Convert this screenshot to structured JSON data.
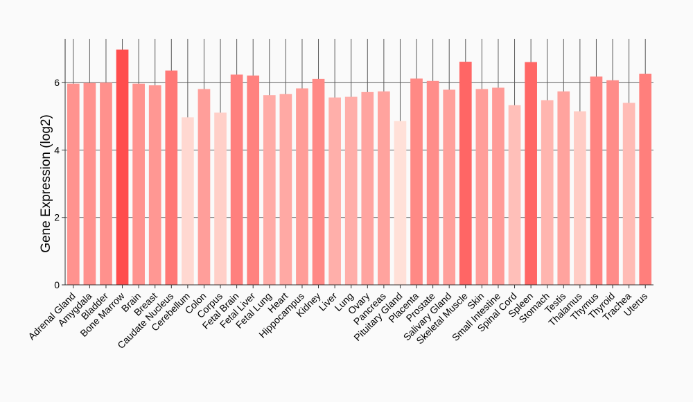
{
  "chart_data": {
    "type": "bar",
    "title": "",
    "xlabel": "",
    "ylabel": "Gene Expression (log2)",
    "ylim": [
      0,
      7.3
    ],
    "yticks": [
      0,
      2,
      4,
      6
    ],
    "grid": true,
    "categories": [
      "Adrenal Gland",
      "Amygdala",
      "Bladder",
      "Bone Marrow",
      "Brain",
      "Breast",
      "Caudate Nucleus",
      "Cerebellum",
      "Colon",
      "Corpus",
      "Fetal Brain",
      "Fetal Liver",
      "Fetal Lung",
      "Heart",
      "Hippocampus",
      "Kidney",
      "Liver",
      "Lung",
      "Ovary",
      "Pancreas",
      "Pituitary Gland",
      "Placenta",
      "Prostate",
      "Salivary Gland",
      "Skeletal Muscle",
      "Skin",
      "Small Intestine",
      "Spinal Cord",
      "Spleen",
      "Stomach",
      "Testis",
      "Thalamus",
      "Thymus",
      "Thyroid",
      "Trachea",
      "Uterus"
    ],
    "values": [
      5.97,
      5.99,
      6.0,
      6.98,
      5.97,
      5.92,
      6.36,
      4.97,
      5.81,
      5.11,
      6.24,
      6.21,
      5.63,
      5.66,
      5.83,
      6.11,
      5.56,
      5.58,
      5.72,
      5.74,
      4.86,
      6.12,
      6.05,
      5.79,
      6.62,
      5.81,
      5.85,
      5.33,
      6.61,
      5.48,
      5.74,
      5.15,
      6.18,
      6.07,
      5.4,
      6.26
    ],
    "color_low": "#ffe0d8",
    "color_high": "#ff4d4d",
    "gridline_color": "#5a5a5a"
  }
}
